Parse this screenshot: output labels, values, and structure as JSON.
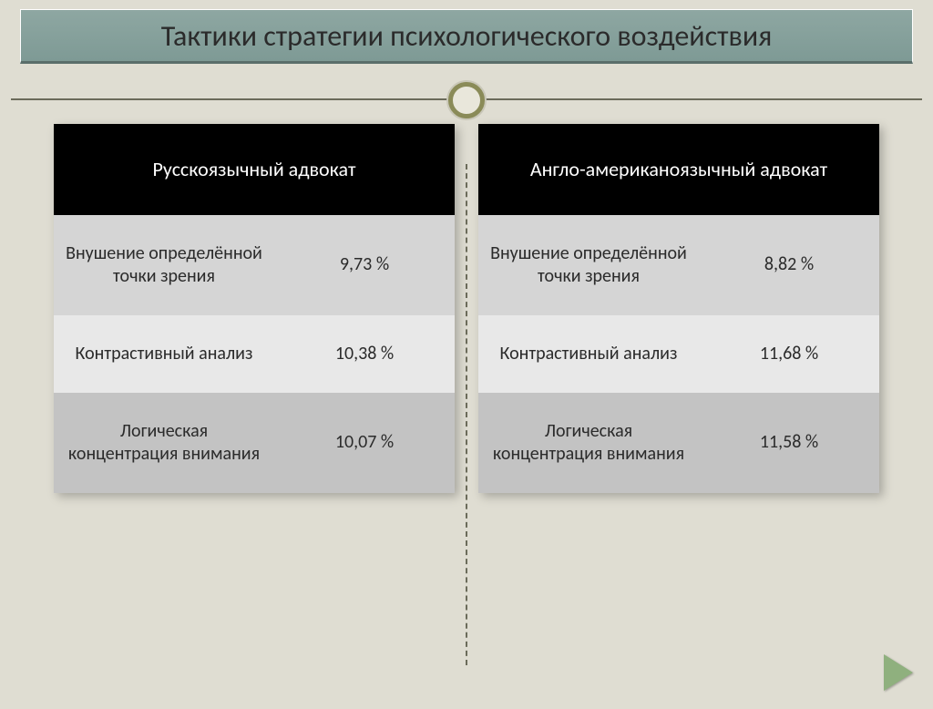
{
  "slide": {
    "title": "Тактики стратегии психологического воздействия",
    "colors": {
      "background": "#dfddd2",
      "title_bg": "#8ea7a2",
      "header_bg": "#000000",
      "header_text": "#ffffff",
      "row_text": "#2b2b2b",
      "row_alt_1": "#d5d5d5",
      "row_alt_2": "#e8e8e8",
      "row_alt_3": "#c3c3c3",
      "ring": "#8a8b58",
      "arrow": "#8fb07e"
    },
    "title_fontsize": 32,
    "cell_fontsize": 20,
    "header_fontsize": 22
  },
  "tables": {
    "left": {
      "header": "Русскоязычный адвокат",
      "rows": [
        {
          "label": "Внушение определённой точки зрения",
          "value": "9,73 %"
        },
        {
          "label": "Контрастивный анализ",
          "value": "10,38 %"
        },
        {
          "label": "Логическая концентрация внимания",
          "value": "10,07 %"
        }
      ]
    },
    "right": {
      "header": "Англо-американоязычный адвокат",
      "rows": [
        {
          "label": "Внушение определённой точки зрения",
          "value": "8,82 %"
        },
        {
          "label": "Контрастивный анализ",
          "value": "11,68 %"
        },
        {
          "label": "Логическая концентрация внимания",
          "value": "11,58 %"
        }
      ]
    }
  },
  "nav": {
    "next": "next-slide"
  }
}
